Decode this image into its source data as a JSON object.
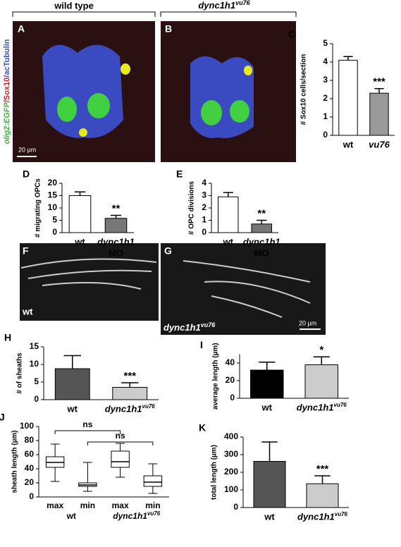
{
  "figure": {
    "headers": [
      {
        "text": "wild type"
      },
      {
        "text": "dync1h1",
        "sup": "vu76"
      }
    ],
    "side_label": [
      "olig2:EGFP",
      "/Sox10",
      "/acTubulin"
    ],
    "panels": [
      "A",
      "B",
      "F",
      "G"
    ],
    "scale_bars": [
      "20 µm",
      "20 µm"
    ],
    "image_labels": [
      {
        "text": "wt"
      },
      {
        "text": "dync1h1",
        "sup": "vu76"
      }
    ]
  },
  "chart_data": [
    {
      "type": "bar",
      "panel": "C",
      "ylabel": "# Sox10 cells/section",
      "categories": [
        "wt",
        "vu76"
      ],
      "values": [
        4.1,
        2.3
      ],
      "errors": [
        0.2,
        0.25
      ],
      "colors": [
        "#ffffff",
        "#9a9a9a"
      ],
      "ylim": [
        0,
        5
      ],
      "yticks": [
        0,
        1,
        2,
        3,
        4,
        5
      ],
      "annotation": "***"
    },
    {
      "type": "bar",
      "panel": "D",
      "ylabel": "# migrating OPCs",
      "categories": [
        "wt",
        "dync1h1"
      ],
      "category_sublabels": [
        null,
        "MO"
      ],
      "values": [
        15,
        5.8
      ],
      "errors": [
        1.5,
        1.2
      ],
      "colors": [
        "#ffffff",
        "#777777"
      ],
      "ylim": [
        0,
        20
      ],
      "yticks": [
        0,
        5,
        10,
        15,
        20
      ],
      "annotation": "**"
    },
    {
      "type": "bar",
      "panel": "E",
      "ylabel": "# OPC divisions",
      "categories": [
        "wt",
        "dync1h1"
      ],
      "category_sublabels": [
        null,
        "MO"
      ],
      "values": [
        2.9,
        0.7
      ],
      "errors": [
        0.35,
        0.3
      ],
      "colors": [
        "#ffffff",
        "#777777"
      ],
      "ylim": [
        0,
        4
      ],
      "yticks": [
        0,
        1,
        2,
        3,
        4
      ],
      "annotation": "**"
    },
    {
      "type": "bar",
      "panel": "H",
      "ylabel": "# of sheaths",
      "categories": [
        "wt",
        "dync1h1"
      ],
      "category_superscripts": [
        null,
        "vu76"
      ],
      "values": [
        8.8,
        3.5
      ],
      "errors": [
        3.7,
        1.3
      ],
      "colors": [
        "#555555",
        "#cccccc"
      ],
      "ylim": [
        0,
        15
      ],
      "yticks": [
        0,
        5,
        10,
        15
      ],
      "annotation": "***"
    },
    {
      "type": "bar",
      "panel": "I",
      "ylabel": "average length (µm)",
      "categories": [
        "wt",
        "dync1h1"
      ],
      "category_superscripts": [
        null,
        "vu76"
      ],
      "values": [
        32,
        38
      ],
      "errors": [
        9,
        9
      ],
      "colors": [
        "#000000",
        "#cccccc"
      ],
      "ylim": [
        0,
        50
      ],
      "yticks": [
        0,
        20,
        40
      ],
      "annotation": "*"
    },
    {
      "type": "box",
      "panel": "J",
      "ylabel": "sheath length (µm)",
      "categories": [
        "max",
        "min",
        "max",
        "min"
      ],
      "groups": [
        {
          "text": "wt"
        },
        {
          "text": "dync1h1",
          "sup": "vu76"
        }
      ],
      "boxes": [
        {
          "min": 22,
          "q1": 42,
          "median": 49,
          "q3": 57,
          "max": 75
        },
        {
          "min": 8,
          "q1": 15,
          "median": 17,
          "q3": 20,
          "max": 49
        },
        {
          "min": 28,
          "q1": 42,
          "median": 50,
          "q3": 65,
          "max": 76
        },
        {
          "min": 5,
          "q1": 15,
          "median": 21,
          "q3": 30,
          "max": 47
        }
      ],
      "ylim": [
        0,
        100
      ],
      "yticks": [
        0,
        20,
        40,
        60,
        80,
        100
      ],
      "annotations": [
        "ns",
        "ns"
      ]
    },
    {
      "type": "bar",
      "panel": "K",
      "ylabel": "total length (µm)",
      "categories": [
        "wt",
        "dync1h1"
      ],
      "category_superscripts": [
        null,
        "vu76"
      ],
      "values": [
        262,
        135
      ],
      "errors": [
        110,
        45
      ],
      "colors": [
        "#555555",
        "#cccccc"
      ],
      "ylim": [
        0,
        400
      ],
      "yticks": [
        0,
        100,
        200,
        300,
        400
      ],
      "annotation": "***"
    }
  ]
}
